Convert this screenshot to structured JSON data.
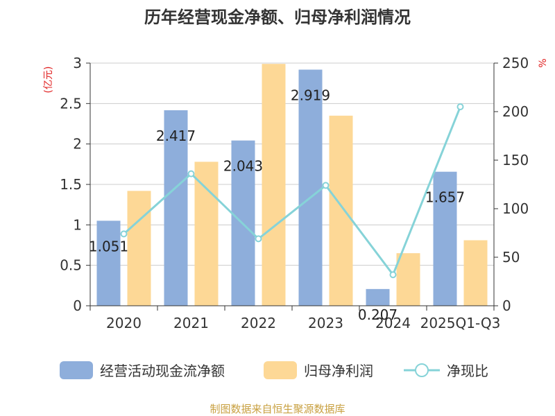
{
  "chart_data": {
    "type": "bar",
    "title": "历年经营现金净额、归母净利润情况",
    "left_unit": "(亿元)",
    "right_unit": "%",
    "categories": [
      "2020",
      "2021",
      "2022",
      "2023",
      "2024",
      "2025Q1-Q3"
    ],
    "left_axis": {
      "min": 0,
      "max": 3,
      "ticks": [
        "0",
        "0.5",
        "1",
        "1.5",
        "2",
        "2.5",
        "3"
      ]
    },
    "right_axis": {
      "min": 0,
      "max": 250,
      "ticks": [
        "0",
        "50",
        "100",
        "150",
        "200",
        "250"
      ]
    },
    "series": [
      {
        "name": "经营活动现金流净额",
        "type": "bar",
        "axis": "left",
        "color": "#8eaedb",
        "values": [
          1.051,
          2.417,
          2.043,
          2.919,
          0.207,
          1.657
        ],
        "labels": [
          "1.051",
          "2.417",
          "2.043",
          "2.919",
          "0.207",
          "1.657"
        ]
      },
      {
        "name": "归母净利润",
        "type": "bar",
        "axis": "left",
        "color": "#fdd896",
        "values": [
          1.42,
          1.78,
          2.99,
          2.35,
          0.65,
          0.81
        ]
      },
      {
        "name": "净现比",
        "type": "line",
        "axis": "right",
        "color": "#86d3d8",
        "values": [
          74,
          136,
          69,
          124,
          32,
          205
        ]
      }
    ],
    "grid": true,
    "legend_position": "bottom"
  },
  "footer": {
    "source": "制图数据来自恒生聚源数据库"
  }
}
